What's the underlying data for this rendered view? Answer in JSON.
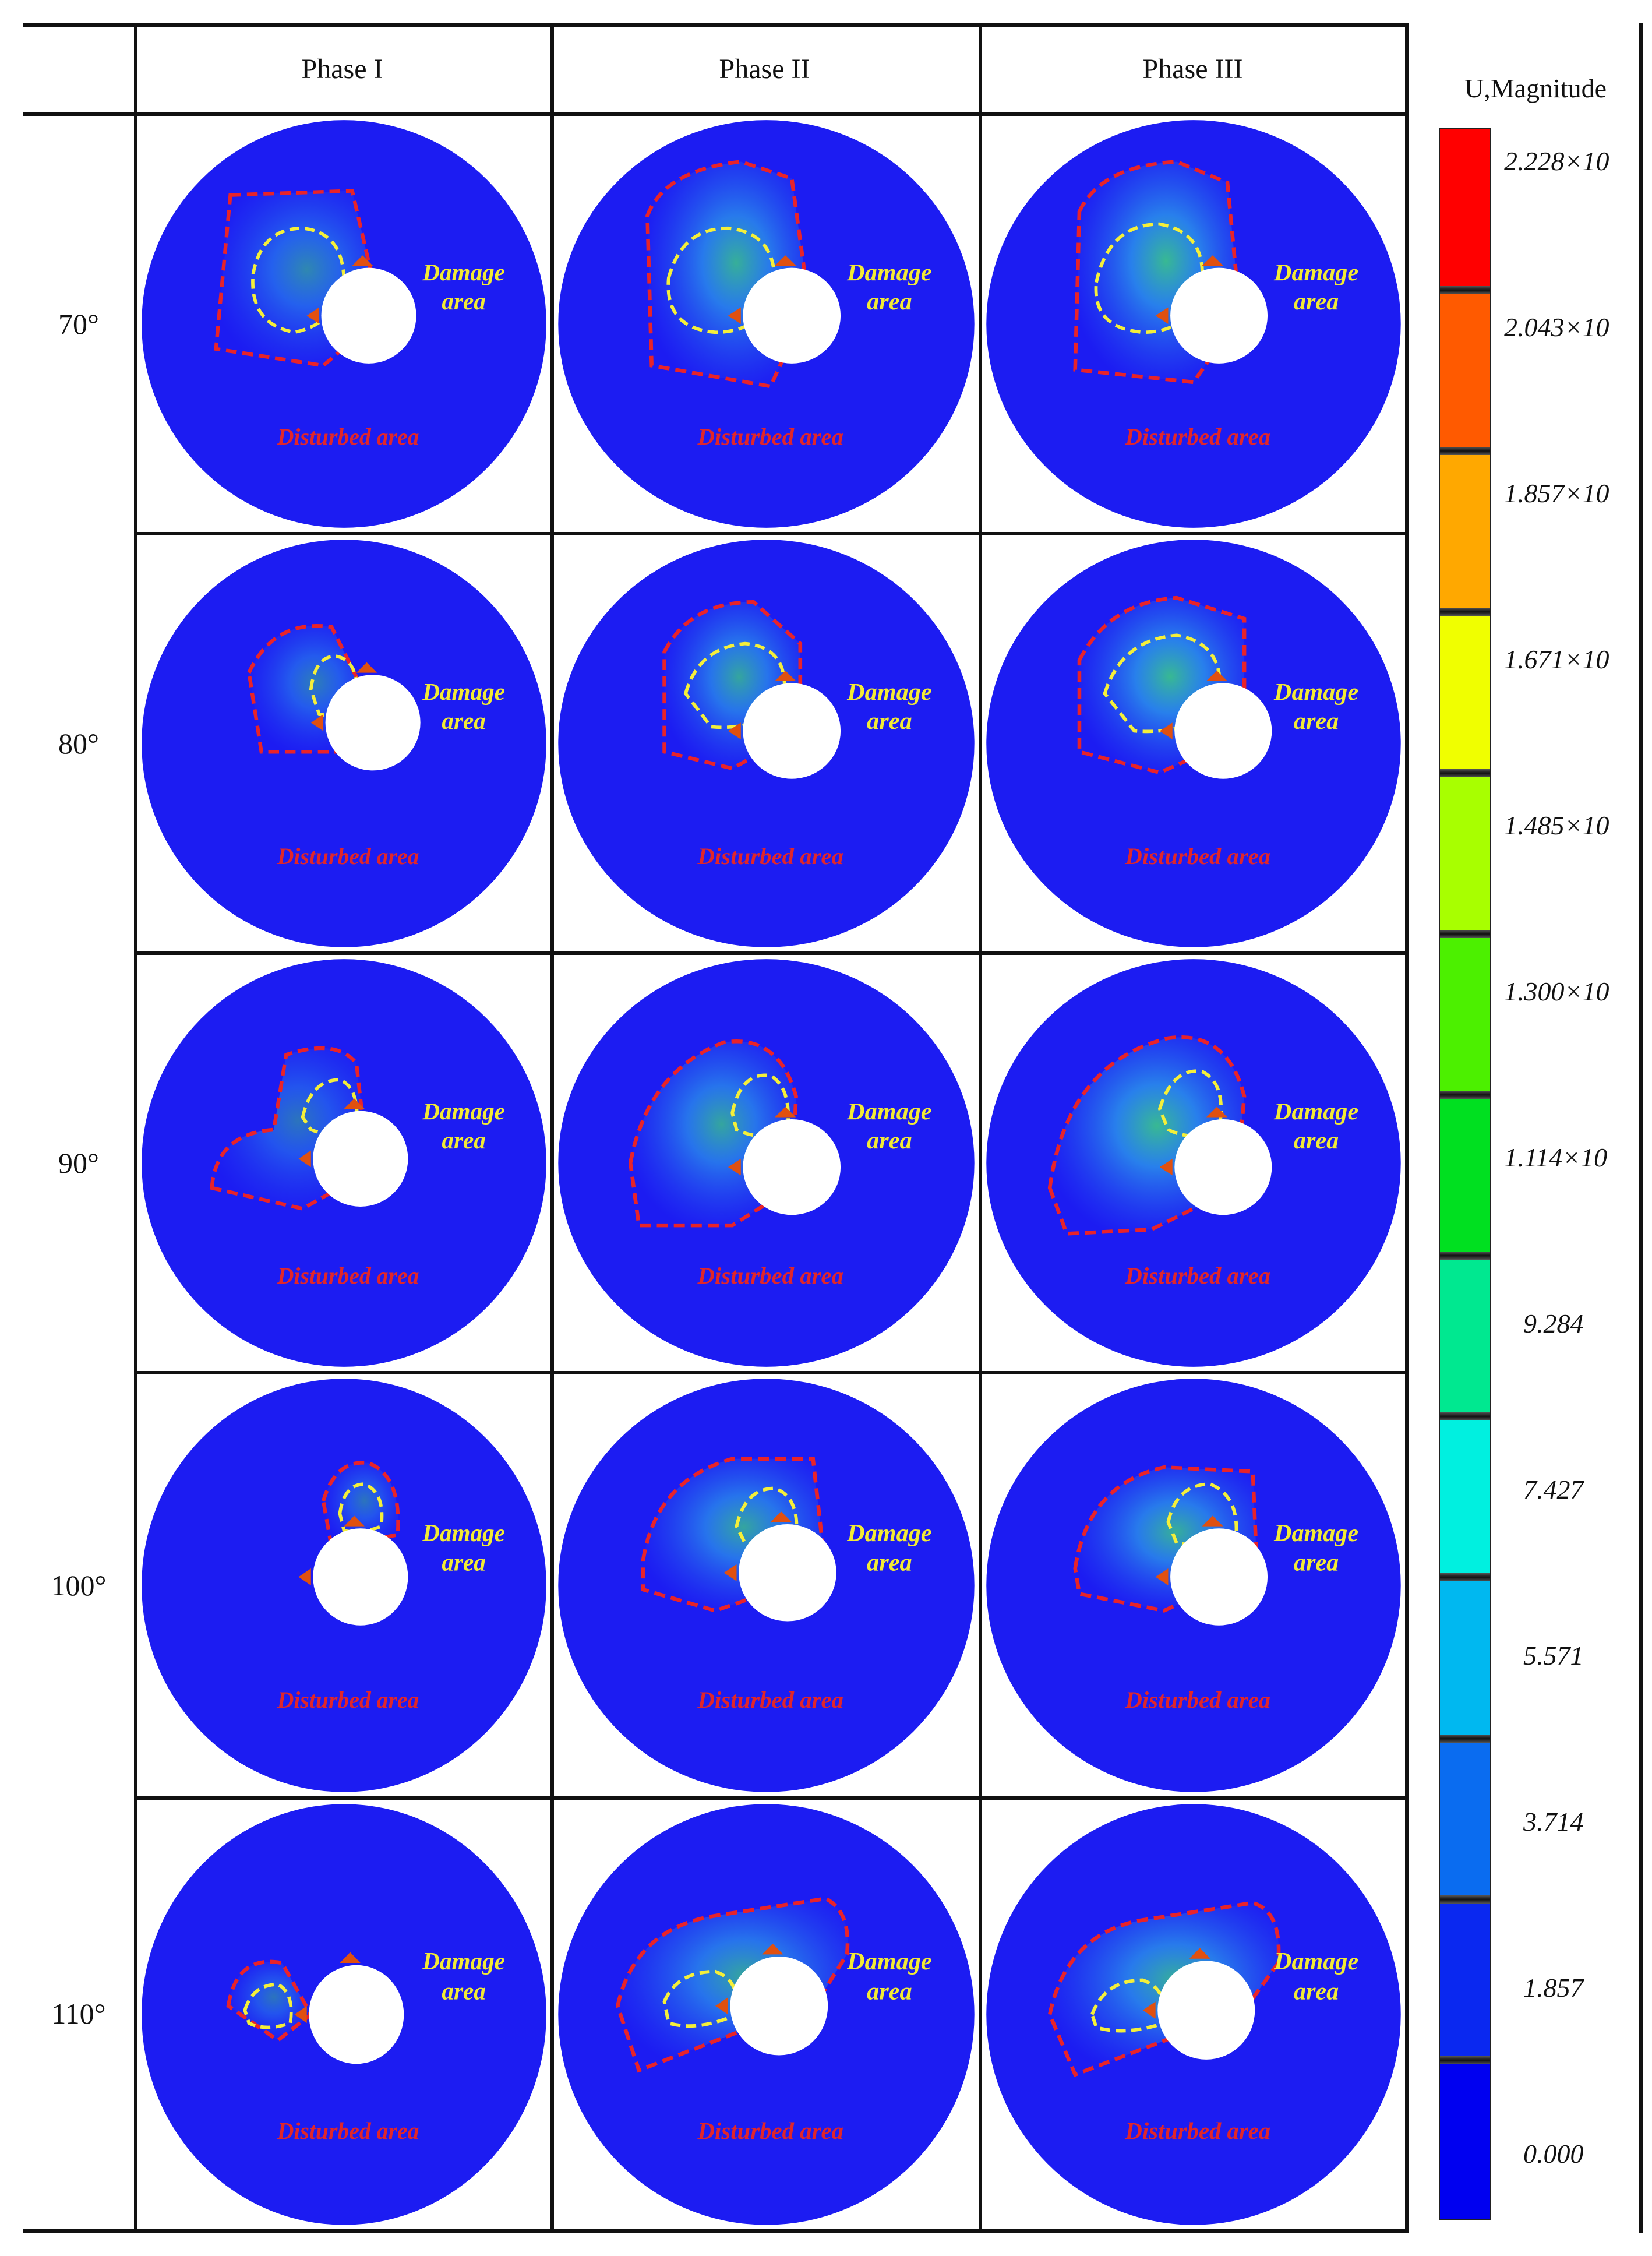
{
  "columns": [
    "Phase I",
    "Phase II",
    "Phase III"
  ],
  "rows": [
    "70°",
    "80°",
    "90°",
    "100°",
    "110°"
  ],
  "region_labels": {
    "damage_line1": "Damage",
    "damage_line2": "area",
    "disturbed": "Disturbed area"
  },
  "legend": {
    "title": "U,Magnitude",
    "labels": [
      "2.228×10",
      "2.043×10",
      "1.857×10",
      "1.671×10",
      "1.485×10",
      "1.300×10",
      "1.114×10",
      "9.284",
      "7.427",
      "5.571",
      "3.714",
      "1.857",
      "0.000"
    ],
    "colors": [
      "#ff0000",
      "#ff5a00",
      "#ffa800",
      "#f0ff00",
      "#a8ff00",
      "#4cf000",
      "#00e020",
      "#00e890",
      "#00f0e0",
      "#00b8f0",
      "#0a6cf0",
      "#0a28f0",
      "#0000f0"
    ]
  },
  "colors": {
    "model_blue": "#1c1cf2",
    "disturbed_outline": "#e8232a",
    "damage_outline": "#f4ef3a",
    "damage_text": "#f2ea35",
    "disturbed_text": "#e0262b"
  }
}
